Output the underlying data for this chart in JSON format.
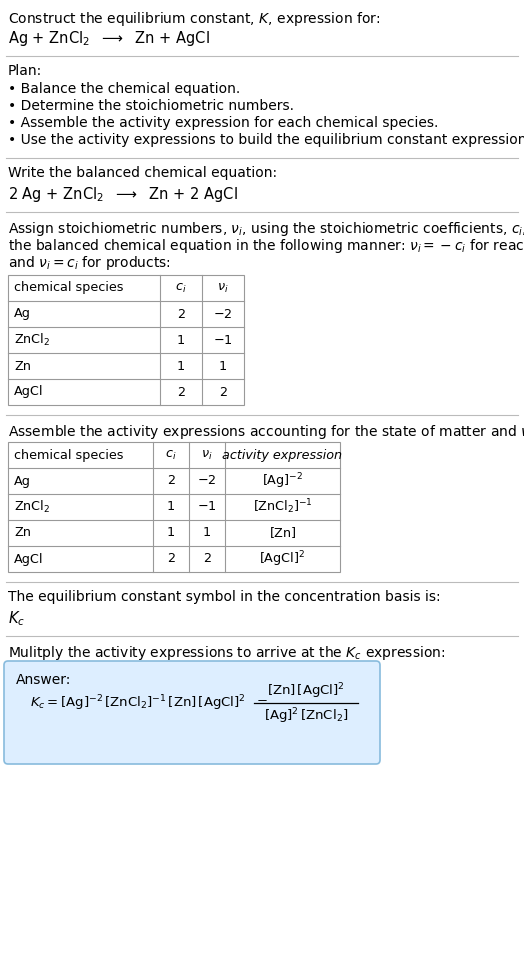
{
  "bg_color": "#ffffff",
  "text_color": "#000000",
  "title_line1": "Construct the equilibrium constant, $K$, expression for:",
  "title_line2": "Ag + ZnCl$_2$  $\\longrightarrow$  Zn + AgCl",
  "plan_header": "Plan:",
  "plan_bullets": [
    "• Balance the chemical equation.",
    "• Determine the stoichiometric numbers.",
    "• Assemble the activity expression for each chemical species.",
    "• Use the activity expressions to build the equilibrium constant expression."
  ],
  "balanced_header": "Write the balanced chemical equation:",
  "balanced_eq": "2 Ag + ZnCl$_2$  $\\longrightarrow$  Zn + 2 AgCl",
  "stoich_lines": [
    "Assign stoichiometric numbers, $\\nu_i$, using the stoichiometric coefficients, $c_i$, from",
    "the balanced chemical equation in the following manner: $\\nu_i = -c_i$ for reactants",
    "and $\\nu_i = c_i$ for products:"
  ],
  "table1_headers": [
    "chemical species",
    "$c_i$",
    "$\\nu_i$"
  ],
  "table1_rows": [
    [
      "Ag",
      "2",
      "$-2$"
    ],
    [
      "ZnCl$_2$",
      "1",
      "$-1$"
    ],
    [
      "Zn",
      "1",
      "1"
    ],
    [
      "AgCl",
      "2",
      "2"
    ]
  ],
  "activity_header": "Assemble the activity expressions accounting for the state of matter and $\\nu_i$:",
  "table2_headers": [
    "chemical species",
    "$c_i$",
    "$\\nu_i$",
    "activity expression"
  ],
  "table2_rows": [
    [
      "Ag",
      "2",
      "$-2$",
      "$[\\mathrm{Ag}]^{-2}$"
    ],
    [
      "ZnCl$_2$",
      "1",
      "$-1$",
      "$[\\mathrm{ZnCl_2}]^{-1}$"
    ],
    [
      "Zn",
      "1",
      "1",
      "$[\\mathrm{Zn}]$"
    ],
    [
      "AgCl",
      "2",
      "2",
      "$[\\mathrm{AgCl}]^{2}$"
    ]
  ],
  "kc_header": "The equilibrium constant symbol in the concentration basis is:",
  "kc_symbol": "$K_c$",
  "multiply_header": "Mulitply the activity expressions to arrive at the $K_c$ expression:",
  "answer_box_color": "#ddeeff",
  "answer_border_color": "#88bbdd",
  "answer_label": "Answer:",
  "answer_eq": "$K_c = [\\mathrm{Ag}]^{-2}\\,[\\mathrm{ZnCl_2}]^{-1}\\,[\\mathrm{Zn}]\\,[\\mathrm{AgCl}]^{2}$  $=$",
  "answer_num": "$[\\mathrm{Zn}]\\,[\\mathrm{AgCl}]^{2}$",
  "answer_den": "$[\\mathrm{Ag}]^{2}\\,[\\mathrm{ZnCl_2}]$"
}
